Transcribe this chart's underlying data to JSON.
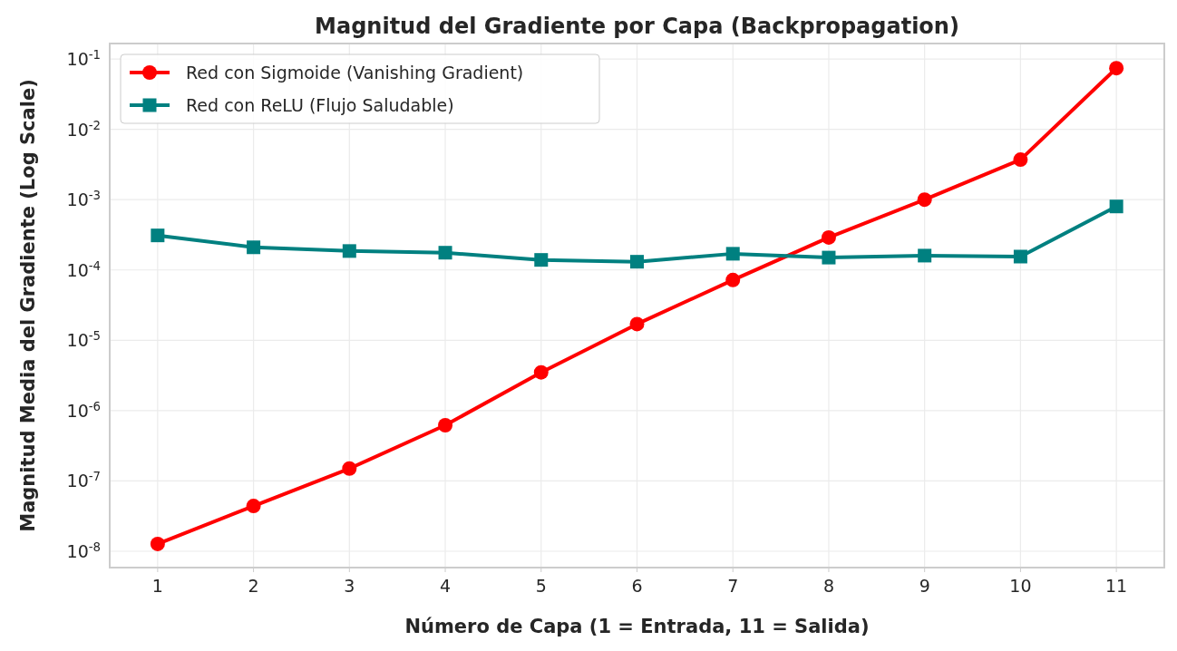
{
  "chart_data": {
    "type": "line",
    "title": "Magnitud del Gradiente por Capa (Backpropagation)",
    "xlabel": "Número de Capa (1 = Entrada, 11 = Salida)",
    "ylabel": "Magnitud Media del Gradiente (Log Scale)",
    "x": [
      1,
      2,
      3,
      4,
      5,
      6,
      7,
      8,
      9,
      10,
      11
    ],
    "series": [
      {
        "name": "Red con Sigmoide (Vanishing Gradient)",
        "color": "#ff0000",
        "marker": "circle",
        "values": [
          1.27e-08,
          4.4e-08,
          1.5e-07,
          6.2e-07,
          3.5e-06,
          1.7e-05,
          7.2e-05,
          0.00029,
          0.001,
          0.0037,
          0.074
        ]
      },
      {
        "name": "Red con ReLU (Flujo Saludable)",
        "color": "#008080",
        "marker": "square",
        "values": [
          0.00031,
          0.00021,
          0.000186,
          0.000176,
          0.000139,
          0.000131,
          0.00017,
          0.00015,
          0.00016,
          0.000155,
          0.0008
        ]
      }
    ],
    "log": "y",
    "xlim": [
      0.5,
      11.5
    ],
    "xticks": [
      1,
      2,
      3,
      4,
      5,
      6,
      7,
      8,
      9,
      10,
      11
    ],
    "ylim": [
      5.86e-09,
      0.166
    ],
    "yticks": [
      {
        "value": 1e-08,
        "label": "10$^{-8}$"
      },
      {
        "value": 1e-07,
        "label": "10$^{-7}$"
      },
      {
        "value": 1e-06,
        "label": "10$^{-6}$"
      },
      {
        "value": 1e-05,
        "label": "10$^{-5}$"
      },
      {
        "value": 0.0001,
        "label": "10$^{-4}$"
      },
      {
        "value": 0.001,
        "label": "10$^{-3}$"
      },
      {
        "value": 0.01,
        "label": "10$^{-2}$"
      },
      {
        "value": 0.1,
        "label": "10$^{-1}$"
      }
    ],
    "grid": true,
    "legend": "top left",
    "line_style": "solid"
  }
}
